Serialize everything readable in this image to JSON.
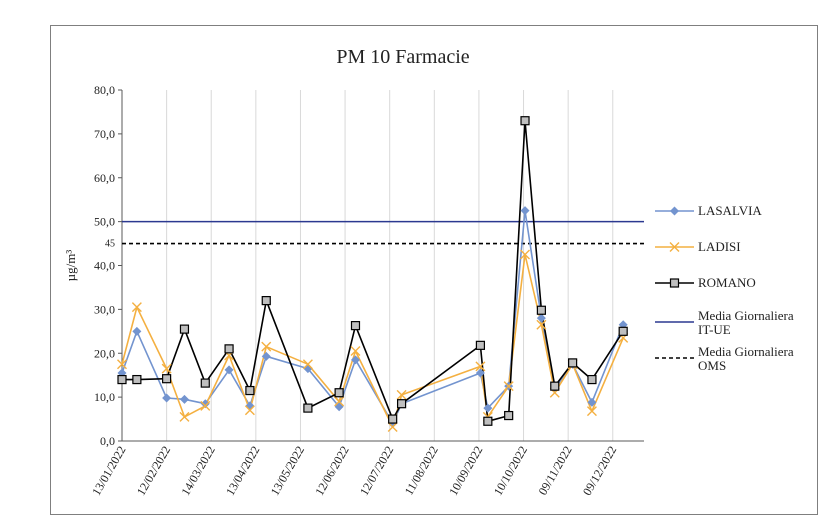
{
  "chart_data": {
    "type": "line",
    "title": "PM 10 Farmacie",
    "xlabel": "",
    "ylabel": "µg/m³",
    "ylim": [
      0,
      80
    ],
    "yticks": [
      "0,0",
      "10,0",
      "20,0",
      "30,0",
      "40,0",
      "50,0",
      "60,0",
      "70,0",
      "80,0"
    ],
    "xlim": [
      "2022-01-13",
      "2022-12-30"
    ],
    "xticks": [
      {
        "date": "2022-01-13",
        "label": "13/01/2022"
      },
      {
        "date": "2022-02-12",
        "label": "12/02/2022"
      },
      {
        "date": "2022-03-14",
        "label": "14/03/2022"
      },
      {
        "date": "2022-04-13",
        "label": "13/04/2022"
      },
      {
        "date": "2022-05-13",
        "label": "13/05/2022"
      },
      {
        "date": "2022-06-12",
        "label": "12/06/2022"
      },
      {
        "date": "2022-07-12",
        "label": "12/07/2022"
      },
      {
        "date": "2022-08-11",
        "label": "11/08/2022"
      },
      {
        "date": "2022-09-10",
        "label": "10/09/2022"
      },
      {
        "date": "2022-10-10",
        "label": "10/10/2022"
      },
      {
        "date": "2022-11-09",
        "label": "09/11/2022"
      },
      {
        "date": "2022-12-09",
        "label": "09/12/2022"
      }
    ],
    "grid": "vertical",
    "legend": "right",
    "annotations": [
      {
        "text": "45",
        "y": 45
      }
    ],
    "series": [
      {
        "name": "LASALVIA",
        "color": "#7394cf",
        "marker": "diamond",
        "points": [
          {
            "x": "2022-01-13",
            "y": 15.5
          },
          {
            "x": "2022-01-23",
            "y": 25.0
          },
          {
            "x": "2022-02-12",
            "y": 9.8
          },
          {
            "x": "2022-02-24",
            "y": 9.5
          },
          {
            "x": "2022-03-10",
            "y": 8.5
          },
          {
            "x": "2022-03-26",
            "y": 16.2
          },
          {
            "x": "2022-04-09",
            "y": 8.0
          },
          {
            "x": "2022-04-20",
            "y": 19.3
          },
          {
            "x": "2022-05-18",
            "y": 16.5
          },
          {
            "x": "2022-06-08",
            "y": 7.8
          },
          {
            "x": "2022-06-19",
            "y": 18.5
          },
          {
            "x": "2022-07-14",
            "y": 4.0
          },
          {
            "x": "2022-07-20",
            "y": 8.5
          },
          {
            "x": "2022-09-11",
            "y": 15.5
          },
          {
            "x": "2022-09-16",
            "y": 7.5
          },
          {
            "x": "2022-09-30",
            "y": 12.5
          },
          {
            "x": "2022-10-11",
            "y": 52.5
          },
          {
            "x": "2022-10-22",
            "y": 28.0
          },
          {
            "x": "2022-10-31",
            "y": 12.0
          },
          {
            "x": "2022-11-12",
            "y": 17.5
          },
          {
            "x": "2022-11-25",
            "y": 8.8
          },
          {
            "x": "2022-12-16",
            "y": 26.5
          }
        ]
      },
      {
        "name": "LADISI",
        "color": "#f4b041",
        "marker": "x",
        "points": [
          {
            "x": "2022-01-13",
            "y": 17.5
          },
          {
            "x": "2022-01-23",
            "y": 30.5
          },
          {
            "x": "2022-02-12",
            "y": 16.5
          },
          {
            "x": "2022-02-24",
            "y": 5.5
          },
          {
            "x": "2022-03-10",
            "y": 8.0
          },
          {
            "x": "2022-03-26",
            "y": 19.5
          },
          {
            "x": "2022-04-09",
            "y": 7.0
          },
          {
            "x": "2022-04-20",
            "y": 21.5
          },
          {
            "x": "2022-05-18",
            "y": 17.5
          },
          {
            "x": "2022-06-08",
            "y": 9.0
          },
          {
            "x": "2022-06-19",
            "y": 20.5
          },
          {
            "x": "2022-07-14",
            "y": 3.2
          },
          {
            "x": "2022-07-20",
            "y": 10.5
          },
          {
            "x": "2022-09-11",
            "y": 17.0
          },
          {
            "x": "2022-09-16",
            "y": 5.5
          },
          {
            "x": "2022-09-30",
            "y": 12.5
          },
          {
            "x": "2022-10-11",
            "y": 42.5
          },
          {
            "x": "2022-10-22",
            "y": 26.5
          },
          {
            "x": "2022-10-31",
            "y": 11.0
          },
          {
            "x": "2022-11-12",
            "y": 17.5
          },
          {
            "x": "2022-11-25",
            "y": 6.8
          },
          {
            "x": "2022-12-16",
            "y": 23.5
          }
        ]
      },
      {
        "name": "ROMANO",
        "color": "#000000",
        "marker": "square",
        "points": [
          {
            "x": "2022-01-13",
            "y": 14.0
          },
          {
            "x": "2022-01-23",
            "y": 14.0
          },
          {
            "x": "2022-02-12",
            "y": 14.2
          },
          {
            "x": "2022-02-24",
            "y": 25.5
          },
          {
            "x": "2022-03-10",
            "y": 13.2
          },
          {
            "x": "2022-03-26",
            "y": 21.0
          },
          {
            "x": "2022-04-09",
            "y": 11.5
          },
          {
            "x": "2022-04-20",
            "y": 32.0
          },
          {
            "x": "2022-05-18",
            "y": 7.5
          },
          {
            "x": "2022-06-08",
            "y": 11.0
          },
          {
            "x": "2022-06-19",
            "y": 26.3
          },
          {
            "x": "2022-07-14",
            "y": 5.0
          },
          {
            "x": "2022-07-20",
            "y": 8.5
          },
          {
            "x": "2022-09-11",
            "y": 21.8
          },
          {
            "x": "2022-09-16",
            "y": 4.5
          },
          {
            "x": "2022-09-30",
            "y": 5.8
          },
          {
            "x": "2022-10-11",
            "y": 73.0
          },
          {
            "x": "2022-10-22",
            "y": 29.8
          },
          {
            "x": "2022-10-31",
            "y": 12.5
          },
          {
            "x": "2022-11-12",
            "y": 17.8
          },
          {
            "x": "2022-11-25",
            "y": 14.0
          },
          {
            "x": "2022-12-16",
            "y": 25.0
          }
        ]
      }
    ],
    "reference_lines": [
      {
        "name_lines": [
          "Media Giornaliera",
          "IT-UE"
        ],
        "y": 50,
        "color": "#2b3990",
        "style": "solid"
      },
      {
        "name_lines": [
          "Media Giornaliera",
          "OMS"
        ],
        "y": 45,
        "color": "#000000",
        "style": "dashed"
      }
    ]
  }
}
